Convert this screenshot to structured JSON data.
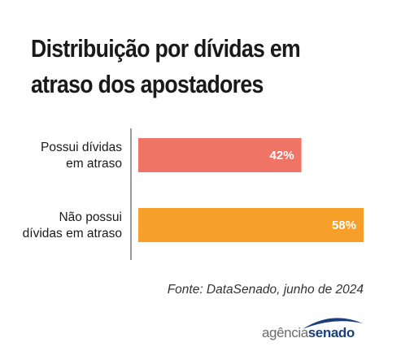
{
  "title_lines": [
    "Distribuição por dívidas em",
    "atraso dos apostadores"
  ],
  "source": "Fonte: DataSenado, junho de 2024",
  "logo": {
    "part1": "agência",
    "part2": "senado"
  },
  "chart_data": {
    "type": "bar",
    "orientation": "horizontal",
    "categories": [
      [
        "Possui dívidas",
        "em atraso"
      ],
      [
        "Não possui",
        "dívidas em atraso"
      ]
    ],
    "values": [
      42,
      58
    ],
    "value_labels": [
      "42%",
      "58%"
    ],
    "colors": [
      "#f07466",
      "#f7a029"
    ],
    "xlim": [
      0,
      58
    ],
    "grid": false
  }
}
